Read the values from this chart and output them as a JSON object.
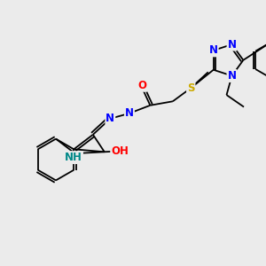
{
  "bg_color": "#ebebeb",
  "bond_color": "#000000",
  "atom_colors": {
    "N": "#0000ff",
    "O": "#ff0000",
    "S": "#ccaa00",
    "H": "#008888",
    "C": "#000000"
  },
  "bond_width": 1.3,
  "font_size": 8.5
}
